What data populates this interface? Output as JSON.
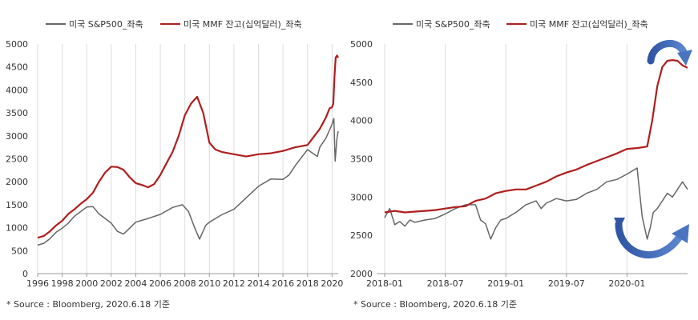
{
  "chart_data": [
    {
      "type": "line",
      "title": "",
      "legend_position": "top",
      "legend": [
        "미국 S&P500_좌축",
        "미국 MMF 잔고(십억달러)_좌축"
      ],
      "x_ticks": [
        "1996",
        "1998",
        "2000",
        "2002",
        "2004",
        "2006",
        "2008",
        "2010",
        "2012",
        "2014",
        "2016",
        "2018",
        "2020"
      ],
      "y_ticks": [
        "0",
        "500",
        "1000",
        "1500",
        "2000",
        "2500",
        "3000",
        "3500",
        "4000",
        "4500",
        "5000"
      ],
      "xlim": [
        1996,
        2020.5
      ],
      "ylim": [
        0,
        5000
      ],
      "grid": "vertical",
      "source": "* Source : Bloomberg, 2020.6.18 기준",
      "series": [
        {
          "name": "미국 S&P500_좌축",
          "color": "#666666",
          "x": [
            1996,
            1996.5,
            1997,
            1997.5,
            1998,
            1998.5,
            1999,
            1999.5,
            2000,
            2000.5,
            2001,
            2001.5,
            2002,
            2002.5,
            2003,
            2003.5,
            2004,
            2005,
            2006,
            2007,
            2007.8,
            2008.3,
            2008.8,
            2009.2,
            2009.7,
            2010,
            2011,
            2012,
            2013,
            2014,
            2015,
            2016,
            2016.5,
            2017,
            2018,
            2018.8,
            2019,
            2019.5,
            2020,
            2020.15,
            2020.25,
            2020.4,
            2020.5
          ],
          "y": [
            620,
            660,
            760,
            900,
            990,
            1100,
            1250,
            1350,
            1450,
            1460,
            1300,
            1200,
            1100,
            920,
            860,
            990,
            1120,
            1200,
            1290,
            1440,
            1500,
            1350,
            1000,
            750,
            1050,
            1120,
            1280,
            1400,
            1650,
            1900,
            2060,
            2050,
            2150,
            2350,
            2700,
            2550,
            2750,
            2950,
            3250,
            3380,
            2450,
            2950,
            3100
          ]
        },
        {
          "name": "미국 MMF 잔고(십억달러)_좌축",
          "color": "#b01e1e",
          "x": [
            1996,
            1996.5,
            1997,
            1997.5,
            1998,
            1998.5,
            1999,
            1999.5,
            2000,
            2000.5,
            2001,
            2001.5,
            2002,
            2002.5,
            2003,
            2003.5,
            2004,
            2004.5,
            2005,
            2005.5,
            2006,
            2006.5,
            2007,
            2007.5,
            2008,
            2008.5,
            2009,
            2009.5,
            2010,
            2010.5,
            2011,
            2012,
            2013,
            2014,
            2015,
            2016,
            2017,
            2018,
            2019,
            2019.5,
            2019.8,
            2020,
            2020.1,
            2020.2,
            2020.3,
            2020.4,
            2020.5
          ],
          "y": [
            780,
            820,
            920,
            1050,
            1150,
            1300,
            1400,
            1520,
            1620,
            1760,
            2000,
            2200,
            2330,
            2320,
            2260,
            2100,
            1970,
            1930,
            1880,
            1950,
            2150,
            2400,
            2650,
            3000,
            3450,
            3700,
            3850,
            3500,
            2850,
            2700,
            2650,
            2600,
            2550,
            2600,
            2620,
            2670,
            2750,
            2800,
            3150,
            3400,
            3600,
            3620,
            3700,
            4300,
            4700,
            4750,
            4700
          ]
        }
      ]
    },
    {
      "type": "line",
      "title": "",
      "legend_position": "top",
      "legend": [
        "미국 S&P500_좌축",
        "미국 MMF 잔고(십억달러)_좌축"
      ],
      "x_ticks": [
        "2018-01",
        "2018-07",
        "2019-01",
        "2019-07",
        "2020-01"
      ],
      "y_ticks": [
        "2000",
        "2500",
        "3000",
        "3500",
        "4000",
        "4500",
        "5000"
      ],
      "xlim": [
        0,
        30
      ],
      "ylim": [
        2000,
        5000
      ],
      "grid": "vertical",
      "source": "* Source : Bloomberg, 2020.6.18 기준",
      "series": [
        {
          "name": "미국 S&P500_좌축",
          "color": "#666666",
          "x": [
            0,
            0.5,
            1,
            1.5,
            2,
            2.5,
            3,
            4,
            5,
            6,
            7,
            8,
            9,
            9.5,
            10,
            10.5,
            11,
            11.5,
            12,
            13,
            14,
            15,
            15.5,
            16,
            17,
            18,
            19,
            20,
            21,
            22,
            23,
            24,
            25,
            25.5,
            26,
            26.3,
            26.6,
            27,
            27.5,
            28,
            28.5,
            29,
            29.5,
            30
          ],
          "y": [
            2730,
            2850,
            2640,
            2680,
            2620,
            2700,
            2670,
            2700,
            2720,
            2780,
            2850,
            2900,
            2900,
            2700,
            2650,
            2450,
            2600,
            2700,
            2720,
            2800,
            2900,
            2950,
            2850,
            2920,
            2980,
            2950,
            2970,
            3050,
            3100,
            3200,
            3230,
            3300,
            3380,
            2750,
            2450,
            2600,
            2800,
            2850,
            2950,
            3050,
            3000,
            3100,
            3200,
            3100
          ]
        },
        {
          "name": "미국 MMF 잔고(십억달러)_좌축",
          "color": "#b01e1e",
          "x": [
            0,
            1,
            2,
            3,
            4,
            5,
            6,
            7,
            8,
            9,
            10,
            11,
            12,
            13,
            14,
            15,
            16,
            17,
            18,
            19,
            20,
            21,
            22,
            23,
            24,
            25,
            26,
            26.5,
            27,
            27.5,
            28,
            28.5,
            29,
            29.5,
            30
          ],
          "y": [
            2800,
            2820,
            2800,
            2810,
            2820,
            2830,
            2850,
            2870,
            2880,
            2950,
            2980,
            3050,
            3080,
            3100,
            3100,
            3150,
            3200,
            3270,
            3320,
            3360,
            3420,
            3470,
            3520,
            3570,
            3630,
            3640,
            3660,
            4000,
            4450,
            4700,
            4780,
            4790,
            4780,
            4720,
            4690
          ]
        }
      ]
    }
  ]
}
